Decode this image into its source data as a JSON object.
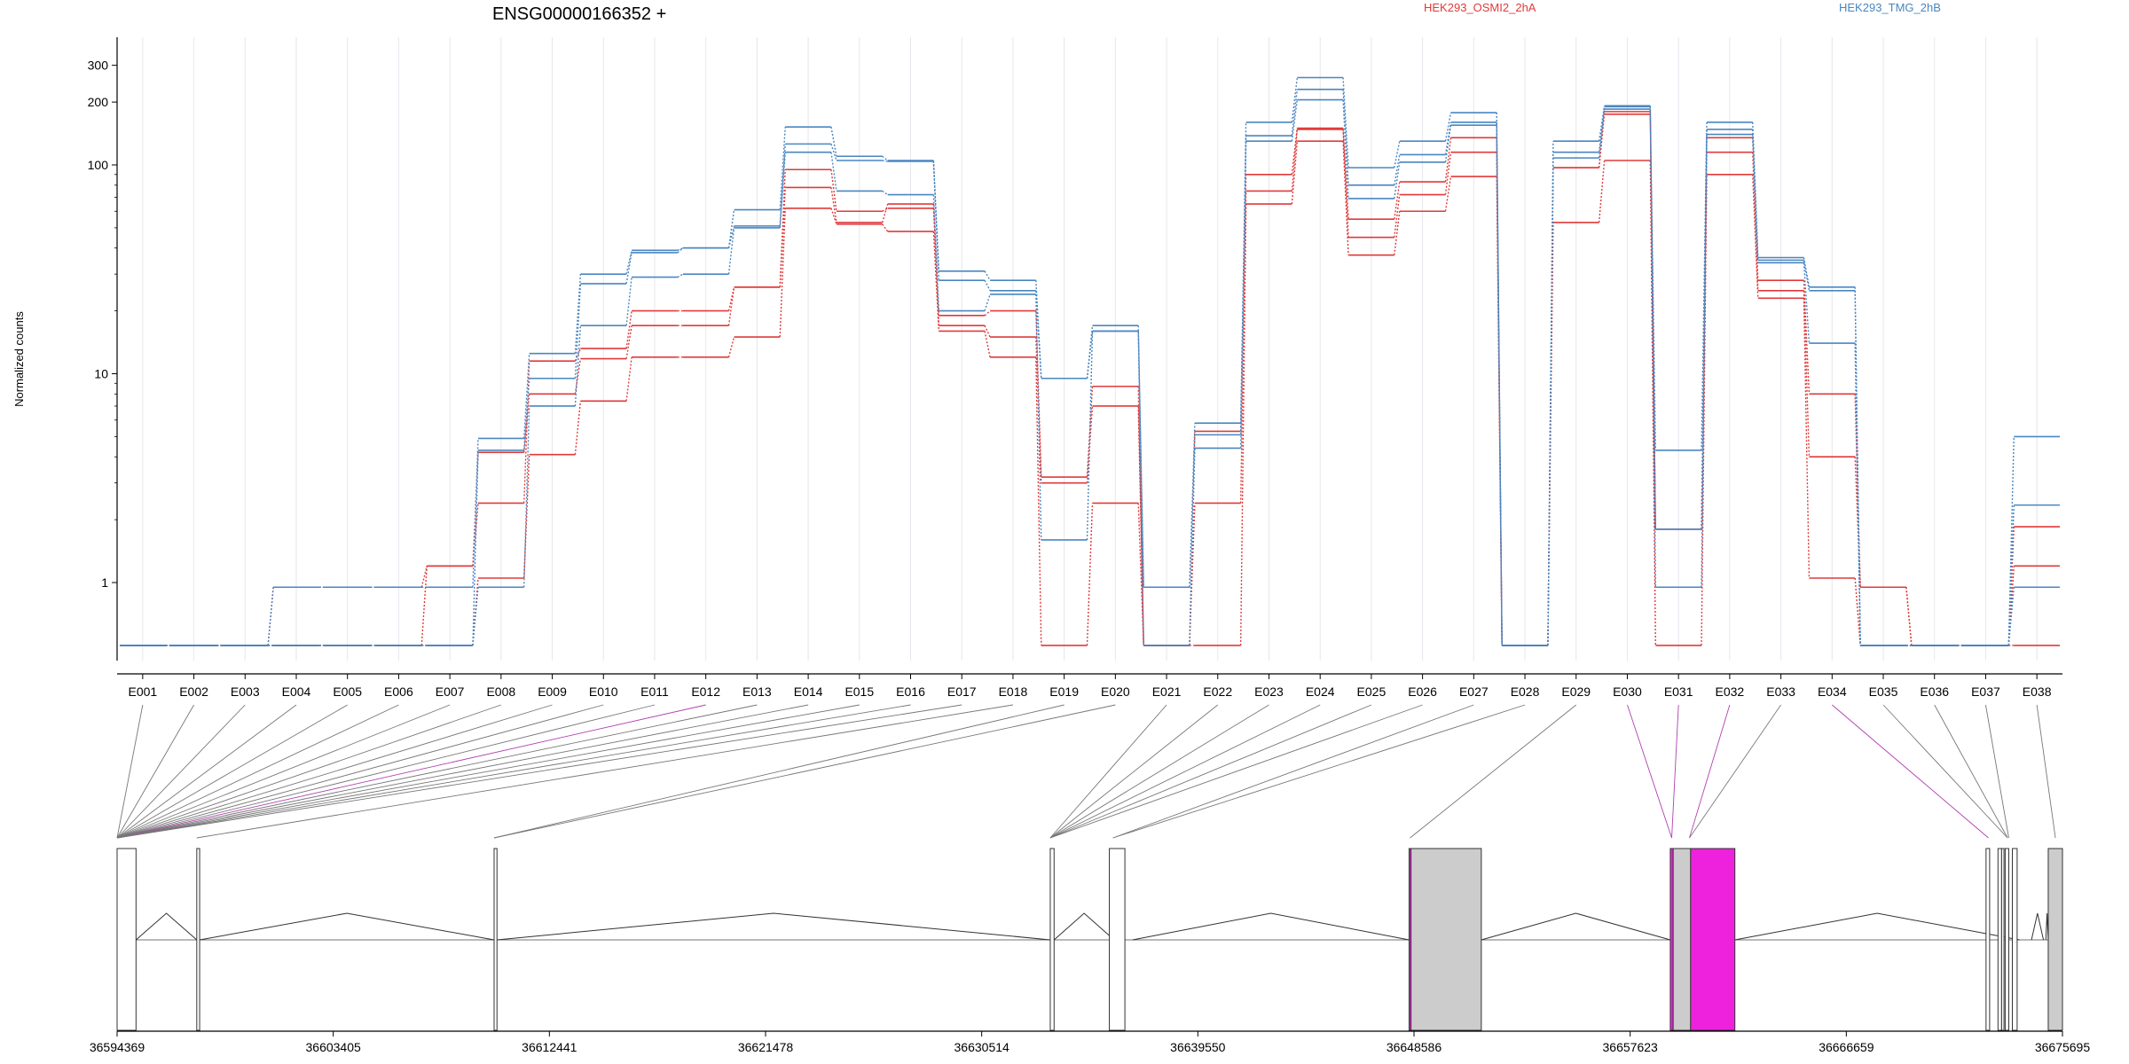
{
  "chart_data": {
    "type": "line",
    "title": "ENSG00000166352 +",
    "ylabel": "Normalized counts",
    "yscale": "log",
    "ylim": [
      0.4,
      330
    ],
    "yticks": [
      "1",
      "10",
      "100",
      "200",
      "300"
    ],
    "grid": "vertical lines at exon centers",
    "legend_placement": "top",
    "colors": {
      "red": "#e03a3a",
      "blue": "#4a86c0",
      "highlight": "#ee22dd",
      "exon_fill": "#cccccc"
    },
    "categories": [
      "E001",
      "E002",
      "E003",
      "E004",
      "E005",
      "E006",
      "E007",
      "E008",
      "E009",
      "E010",
      "E011",
      "E012",
      "E013",
      "E014",
      "E015",
      "E016",
      "E017",
      "E018",
      "E019",
      "E020",
      "E021",
      "E022",
      "E023",
      "E024",
      "E025",
      "E026",
      "E027",
      "E028",
      "E029",
      "E030",
      "E031",
      "E032",
      "E033",
      "E034",
      "E035",
      "E036",
      "E037",
      "E038"
    ],
    "series": [
      {
        "name": "HEK293_OSMI2_2hA",
        "color": "#e03a3a",
        "values": [
          0.5,
          0.5,
          0.5,
          0.95,
          0.95,
          0.95,
          1.2,
          2.4,
          11.5,
          13.2,
          20,
          20,
          26,
          95,
          60,
          62,
          19,
          20,
          3.2,
          8.7,
          0.5,
          5.3,
          90,
          150,
          55,
          83,
          135,
          0.5,
          97,
          180,
          1.8,
          135,
          28,
          8,
          0.95,
          0.5,
          0.5,
          1.2
        ]
      },
      {
        "name": "",
        "color": "#e03a3a",
        "values": [
          0.5,
          0.5,
          0.5,
          0.5,
          0.5,
          0.5,
          1.2,
          4.2,
          8,
          11.8,
          17,
          17,
          26,
          78,
          53,
          65,
          17,
          15,
          3,
          7,
          0.5,
          2.4,
          75,
          148,
          45,
          72,
          115,
          0.5,
          97,
          175,
          1.8,
          115,
          25,
          4,
          0.95,
          0.5,
          0.5,
          1.85
        ]
      },
      {
        "name": "",
        "color": "#e03a3a",
        "values": [
          0.5,
          0.5,
          0.5,
          0.5,
          0.5,
          0.5,
          0.5,
          1.05,
          4.1,
          7.4,
          12,
          12,
          15,
          62,
          52,
          48,
          16,
          12,
          0.5,
          2.4,
          0.5,
          0.5,
          65,
          130,
          37,
          60,
          88,
          0.5,
          53,
          105,
          0.5,
          90,
          23,
          1.05,
          0.5,
          0.5,
          0.5,
          0.5
        ]
      },
      {
        "name": "HEK293_TMG_2hB",
        "color": "#4a86c0",
        "values": [
          0.5,
          0.5,
          0.5,
          0.95,
          0.95,
          0.95,
          0.95,
          4.9,
          12.5,
          30,
          39,
          40,
          61,
          152,
          110,
          105,
          31,
          28,
          9.5,
          17,
          0.95,
          5.8,
          160,
          262,
          97,
          130,
          178,
          0.5,
          130,
          192,
          4.3,
          160,
          36,
          26,
          0.5,
          0.5,
          0.5,
          5
        ]
      },
      {
        "name": "",
        "color": "#4a86c0",
        "values": [
          0.5,
          0.5,
          0.5,
          0.5,
          0.5,
          0.5,
          0.5,
          4.3,
          9.5,
          27,
          38,
          40,
          51,
          126,
          105,
          104,
          28,
          25,
          9.5,
          16,
          0.95,
          5.1,
          138,
          230,
          80,
          112,
          160,
          0.5,
          115,
          190,
          1.8,
          148,
          35,
          25,
          0.5,
          0.5,
          0.5,
          2.35
        ]
      },
      {
        "name": "",
        "color": "#4a86c0",
        "values": [
          0.5,
          0.5,
          0.5,
          0.5,
          0.5,
          0.5,
          0.5,
          0.95,
          7,
          17,
          29,
          30,
          50,
          115,
          75,
          72,
          20,
          24,
          1.6,
          16,
          0.5,
          4.4,
          130,
          205,
          69,
          103,
          155,
          0.5,
          108,
          185,
          0.95,
          140,
          34,
          14,
          0.5,
          0.5,
          0.5,
          0.95
        ]
      }
    ],
    "exon_connectors_highlighted": [
      "E012",
      "E030",
      "E031",
      "E032",
      "E034"
    ],
    "genomic_axis": {
      "tick_labels": [
        "36594369",
        "36603405",
        "36612441",
        "36621478",
        "36630514",
        "36639550",
        "36648586",
        "36657623",
        "36666659",
        "36675695"
      ],
      "range": [
        36594369,
        36675695
      ]
    }
  }
}
